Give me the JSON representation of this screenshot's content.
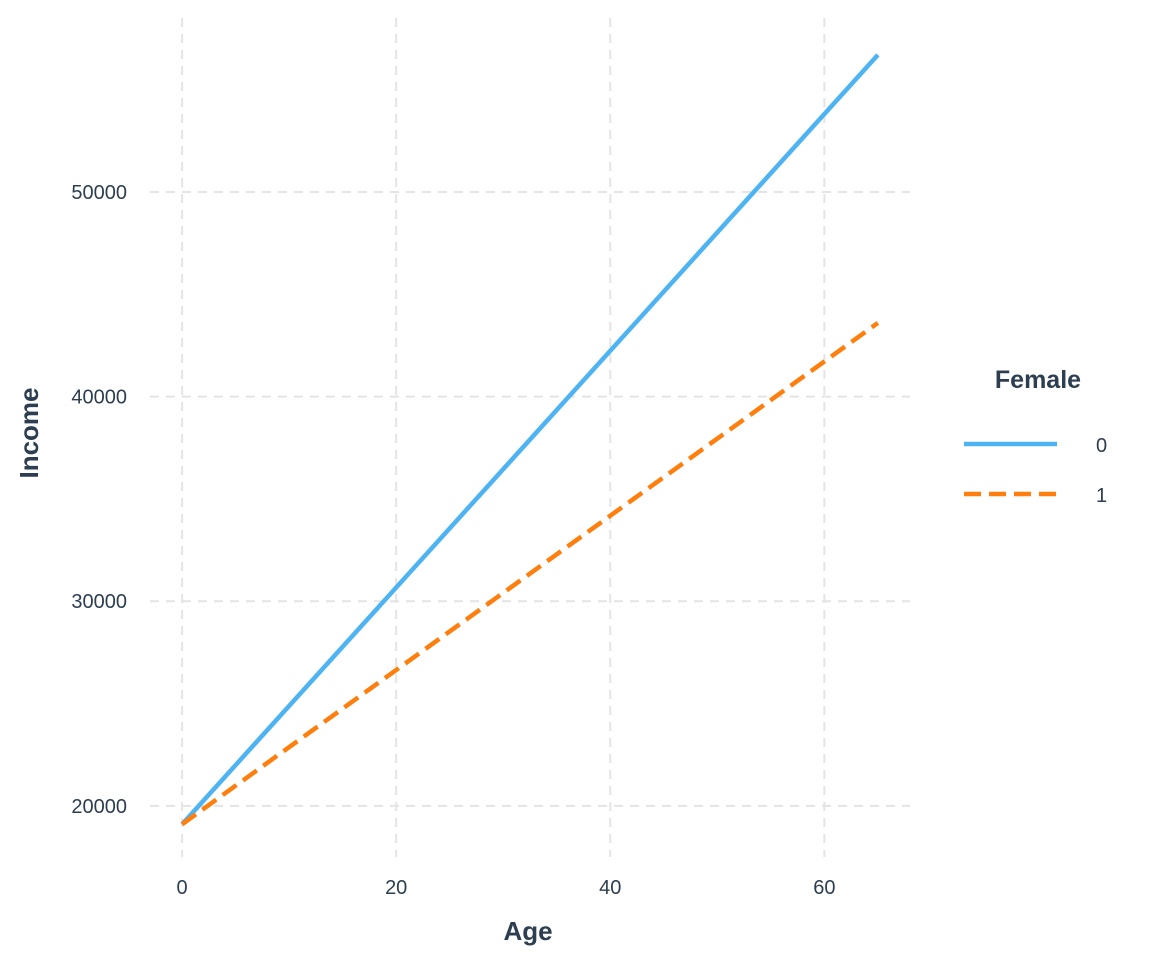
{
  "chart_data": {
    "type": "line",
    "xlabel": "Age",
    "ylabel": "Income",
    "xlim": [
      -3,
      68
    ],
    "ylim": [
      17500,
      58500
    ],
    "x_ticks": [
      0,
      20,
      40,
      60
    ],
    "y_ticks": [
      20000,
      30000,
      40000,
      50000
    ],
    "x_tick_labels": [
      "0",
      "20",
      "40",
      "60"
    ],
    "y_tick_labels": [
      "20000",
      "30000",
      "40000",
      "50000"
    ],
    "grid": true,
    "legend": {
      "title": "Female",
      "position": "right"
    },
    "series": [
      {
        "name": "0",
        "color": "#4db3f2",
        "linestyle": "solid",
        "x": [
          0,
          65
        ],
        "y": [
          19100,
          56700
        ]
      },
      {
        "name": "1",
        "color": "#ff7f0e",
        "linestyle": "dashed",
        "x": [
          0,
          65
        ],
        "y": [
          19100,
          43600
        ]
      }
    ]
  }
}
